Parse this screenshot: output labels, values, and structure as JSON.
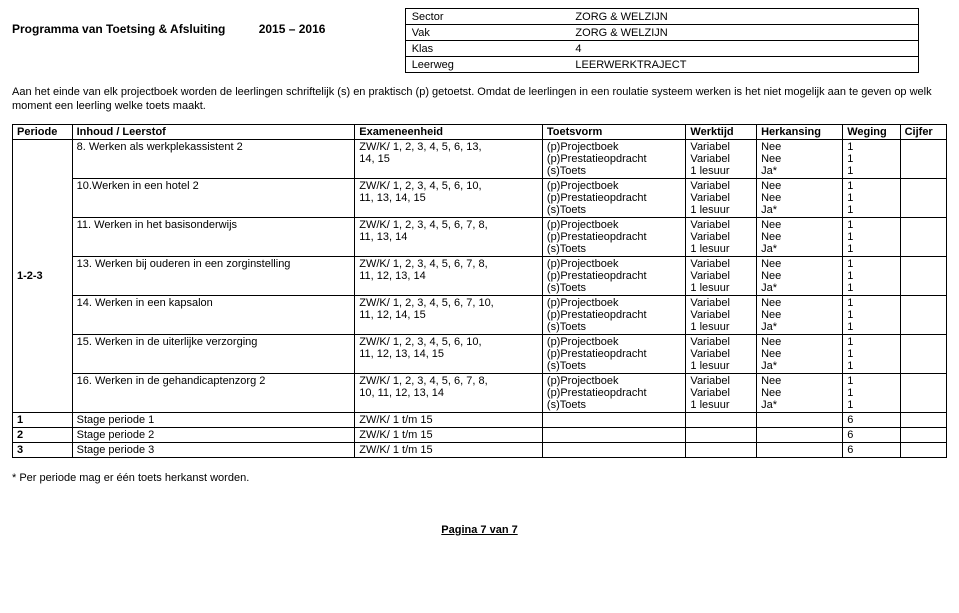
{
  "header": {
    "title": "Programma van Toetsing & Afsluiting",
    "year": "2015 – 2016",
    "info": [
      [
        "Sector",
        "ZORG & WELZIJN"
      ],
      [
        "Vak",
        "ZORG & WELZIJN"
      ],
      [
        "Klas",
        "4"
      ],
      [
        "Leerweg",
        "LEERWERKTRAJECT"
      ]
    ]
  },
  "intro": "Aan het einde van elk projectboek worden de leerlingen schriftelijk (s) en praktisch (p) getoetst. Omdat de leerlingen in een roulatie systeem werken is het niet mogelijk aan te geven op welk moment een leerling welke toets maakt.",
  "columns": [
    "Periode",
    "Inhoud / Leerstof",
    "Exameneenheid",
    "Toetsvorm",
    "Werktijd",
    "Herkansing",
    "Weging",
    "Cijfer"
  ],
  "periodeMerged": "1-2-3",
  "items": [
    {
      "inhoud": "8. Werken als werkplekassistent 2",
      "examen": [
        "ZW/K/ 1, 2, 3, 4, 5, 6, 13,",
        "14, 15"
      ],
      "toets": [
        "(p)Projectboek",
        "(p)Prestatieopdracht",
        "(s)Toets"
      ],
      "werktijd": [
        "Variabel",
        "Variabel",
        "1 lesuur"
      ],
      "herk": [
        "Nee",
        "Nee",
        "Ja*"
      ],
      "weging": [
        "1",
        "1",
        "1"
      ]
    },
    {
      "inhoud": "10.Werken in een hotel 2",
      "examen": [
        "ZW/K/ 1, 2, 3, 4, 5, 6, 10,",
        "11, 13, 14, 15"
      ],
      "toets": [
        "(p)Projectboek",
        "(p)Prestatieopdracht",
        "(s)Toets"
      ],
      "werktijd": [
        "Variabel",
        "Variabel",
        "1 lesuur"
      ],
      "herk": [
        "Nee",
        "Nee",
        "Ja*"
      ],
      "weging": [
        "1",
        "1",
        "1"
      ]
    },
    {
      "inhoud": "11. Werken in het basisonderwijs",
      "examen": [
        "ZW/K/ 1, 2, 3, 4, 5, 6, 7, 8,",
        "11, 13, 14"
      ],
      "toets": [
        "(p)Projectboek",
        "(p)Prestatieopdracht",
        "(s)Toets"
      ],
      "werktijd": [
        "Variabel",
        "Variabel",
        "1 lesuur"
      ],
      "herk": [
        "Nee",
        "Nee",
        "Ja*"
      ],
      "weging": [
        "1",
        "1",
        "1"
      ]
    },
    {
      "inhoud": "13. Werken bij ouderen in een zorginstelling",
      "examen": [
        "ZW/K/ 1, 2, 3, 4, 5, 6, 7, 8,",
        "11, 12, 13, 14"
      ],
      "toets": [
        "(p)Projectboek",
        "(p)Prestatieopdracht",
        "(s)Toets"
      ],
      "werktijd": [
        "Variabel",
        "Variabel",
        "1 lesuur"
      ],
      "herk": [
        "Nee",
        "Nee",
        "Ja*"
      ],
      "weging": [
        "1",
        "1",
        "1"
      ]
    },
    {
      "inhoud": "14. Werken in een kapsalon",
      "examen": [
        "ZW/K/ 1, 2, 3, 4, 5, 6, 7, 10,",
        "11, 12, 14, 15"
      ],
      "toets": [
        "(p)Projectboek",
        "(p)Prestatieopdracht",
        "(s)Toets"
      ],
      "werktijd": [
        "Variabel",
        "Variabel",
        "1 lesuur"
      ],
      "herk": [
        "Nee",
        "Nee",
        "Ja*"
      ],
      "weging": [
        "1",
        "1",
        "1"
      ]
    },
    {
      "inhoud": "15. Werken in de uiterlijke verzorging",
      "examen": [
        "ZW/K/ 1, 2, 3, 4, 5, 6, 10,",
        "11, 12, 13, 14, 15"
      ],
      "toets": [
        "(p)Projectboek",
        "(p)Prestatieopdracht",
        "(s)Toets"
      ],
      "werktijd": [
        "Variabel",
        "Variabel",
        "1 lesuur"
      ],
      "herk": [
        "Nee",
        "Nee",
        "Ja*"
      ],
      "weging": [
        "1",
        "1",
        "1"
      ]
    },
    {
      "inhoud": "16. Werken in de gehandicaptenzorg 2",
      "examen": [
        "ZW/K/ 1, 2, 3, 4, 5, 6, 7, 8,",
        "10, 11, 12, 13, 14"
      ],
      "toets": [
        "(p)Projectboek",
        "(p)Prestatieopdracht",
        "(s)Toets"
      ],
      "werktijd": [
        "Variabel",
        "Variabel",
        "1 lesuur"
      ],
      "herk": [
        "Nee",
        "Nee",
        "Ja*"
      ],
      "weging": [
        "1",
        "1",
        "1"
      ]
    }
  ],
  "stages": [
    {
      "periode": "1",
      "inhoud": "Stage periode 1",
      "examen": "ZW/K/ 1 t/m 15",
      "weging": "6"
    },
    {
      "periode": "2",
      "inhoud": "Stage periode 2",
      "examen": "ZW/K/ 1 t/m 15",
      "weging": "6"
    },
    {
      "periode": "3",
      "inhoud": "Stage periode 3",
      "examen": "ZW/K/ 1 t/m 15",
      "weging": "6"
    }
  ],
  "footnote": "* Per periode mag er één toets herkanst worden.",
  "pagenum": "Pagina 7 van 7"
}
